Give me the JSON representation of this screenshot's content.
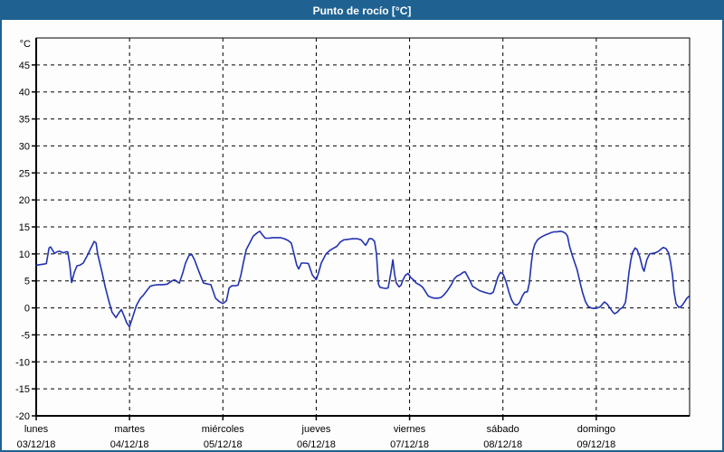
{
  "window": {
    "title": "Punto de rocío [°C]"
  },
  "colors": {
    "titlebar_bg": "#1f6292",
    "titlebar_text": "#ffffff",
    "window_border": "#1f6292",
    "plot_background": "#fdfdfd",
    "axis_color": "#000000",
    "grid_color": "#000000",
    "line_color": "#2233b0",
    "label_color": "#000000"
  },
  "chart_data": {
    "type": "line",
    "title": "Punto de rocío [°C]",
    "legend_position": "none",
    "grid": "dashed-both-axes",
    "y_axis": {
      "unit_label": "°C",
      "ylim": [
        -20,
        50
      ],
      "tick_step": 5,
      "ticks": [
        45,
        40,
        35,
        30,
        25,
        20,
        15,
        10,
        5,
        0,
        -5,
        -10,
        -15,
        -20
      ]
    },
    "x_axis": {
      "range_hours": [
        0,
        168
      ],
      "day_tick_every_hours": 24,
      "days": [
        {
          "name": "lunes",
          "date": "03/12/18"
        },
        {
          "name": "martes",
          "date": "04/12/18"
        },
        {
          "name": "miércoles",
          "date": "05/12/18"
        },
        {
          "name": "jueves",
          "date": "06/12/18"
        },
        {
          "name": "viernes",
          "date": "07/12/18"
        },
        {
          "name": "sábado",
          "date": "08/12/18"
        },
        {
          "name": "domingo",
          "date": "09/12/18"
        }
      ]
    },
    "series": [
      {
        "name": "Punto de rocío",
        "color": "#2233b0",
        "x_unit": "hours since 03/12/18 00:00",
        "points": [
          [
            0,
            7.9
          ],
          [
            0.9,
            8
          ],
          [
            1.9,
            8.1
          ],
          [
            2.6,
            8.2
          ],
          [
            3.3,
            11.1
          ],
          [
            3.7,
            11.3
          ],
          [
            4.7,
            10.1
          ],
          [
            5.4,
            10.4
          ],
          [
            6,
            10.5
          ],
          [
            7,
            10.2
          ],
          [
            7.7,
            10.4
          ],
          [
            8.1,
            10.4
          ],
          [
            8.6,
            8.2
          ],
          [
            9.1,
            4.7
          ],
          [
            9.8,
            6.6
          ],
          [
            10.5,
            7.8
          ],
          [
            11.2,
            7.9
          ],
          [
            12.1,
            8.3
          ],
          [
            13,
            9.5
          ],
          [
            14,
            11
          ],
          [
            14.9,
            12.3
          ],
          [
            15.4,
            12
          ],
          [
            15.8,
            10
          ],
          [
            16.8,
            7
          ],
          [
            17.7,
            4
          ],
          [
            18.6,
            1.5
          ],
          [
            19.5,
            -0.8
          ],
          [
            20.5,
            -1.8
          ],
          [
            21.2,
            -1
          ],
          [
            21.9,
            -0.3
          ],
          [
            22.6,
            -1.5
          ],
          [
            23.3,
            -2.8
          ],
          [
            24,
            -3.5
          ],
          [
            24.9,
            -1.5
          ],
          [
            25.8,
            0.5
          ],
          [
            26.8,
            1.8
          ],
          [
            27.5,
            2.3
          ],
          [
            28.4,
            3.2
          ],
          [
            29.3,
            4
          ],
          [
            30.2,
            4.2
          ],
          [
            31.4,
            4.3
          ],
          [
            32.6,
            4.3
          ],
          [
            33.7,
            4.4
          ],
          [
            34.9,
            5
          ],
          [
            35.6,
            5.2
          ],
          [
            36.3,
            4.8
          ],
          [
            36.8,
            4.6
          ],
          [
            37.7,
            6.5
          ],
          [
            38.4,
            8.3
          ],
          [
            39.3,
            9.7
          ],
          [
            40,
            9.9
          ],
          [
            40.7,
            8.9
          ],
          [
            41.9,
            6.6
          ],
          [
            43,
            4.6
          ],
          [
            44.2,
            4.4
          ],
          [
            44.9,
            4.3
          ],
          [
            46.1,
            1.8
          ],
          [
            47,
            1.2
          ],
          [
            48,
            0.8
          ],
          [
            48.9,
            1.3
          ],
          [
            49.6,
            3.7
          ],
          [
            50.3,
            4.1
          ],
          [
            51.2,
            4.1
          ],
          [
            51.9,
            4.2
          ],
          [
            52.6,
            6
          ],
          [
            53.3,
            8.5
          ],
          [
            54,
            10.8
          ],
          [
            54.9,
            12
          ],
          [
            55.8,
            13.3
          ],
          [
            56.8,
            13.9
          ],
          [
            57.5,
            14.2
          ],
          [
            58.2,
            13.5
          ],
          [
            58.9,
            12.9
          ],
          [
            59.8,
            12.9
          ],
          [
            60.7,
            13
          ],
          [
            61.7,
            13
          ],
          [
            62.8,
            13
          ],
          [
            63.8,
            12.8
          ],
          [
            64.7,
            12.5
          ],
          [
            65.6,
            12
          ],
          [
            66.3,
            10
          ],
          [
            67,
            7.9
          ],
          [
            67.5,
            7.2
          ],
          [
            68.2,
            8.3
          ],
          [
            69.1,
            8.3
          ],
          [
            70,
            8.2
          ],
          [
            71,
            6.1
          ],
          [
            72,
            5.2
          ],
          [
            72.6,
            6.5
          ],
          [
            73.3,
            8.3
          ],
          [
            74.5,
            10
          ],
          [
            75.4,
            10.6
          ],
          [
            76.3,
            11
          ],
          [
            77.3,
            11.4
          ],
          [
            78.2,
            12.2
          ],
          [
            79.1,
            12.6
          ],
          [
            80.3,
            12.7
          ],
          [
            81.4,
            12.8
          ],
          [
            82.6,
            12.8
          ],
          [
            83.5,
            12.6
          ],
          [
            84.2,
            12
          ],
          [
            84.7,
            11.6
          ],
          [
            85.2,
            12.2
          ],
          [
            85.6,
            12.8
          ],
          [
            86.3,
            12.8
          ],
          [
            87,
            12.3
          ],
          [
            87.5,
            10
          ],
          [
            88,
            4.4
          ],
          [
            88.4,
            3.8
          ],
          [
            89.1,
            3.7
          ],
          [
            89.8,
            3.6
          ],
          [
            90.5,
            3.7
          ],
          [
            91.2,
            6.5
          ],
          [
            91.7,
            8.9
          ],
          [
            92.2,
            6
          ],
          [
            92.6,
            4.6
          ],
          [
            93.3,
            3.9
          ],
          [
            93.8,
            4.2
          ],
          [
            94.3,
            5.2
          ],
          [
            94.9,
            6
          ],
          [
            95.6,
            6.4
          ],
          [
            96.3,
            5.6
          ],
          [
            97,
            5.2
          ],
          [
            97.7,
            4.6
          ],
          [
            98.7,
            4.2
          ],
          [
            99.4,
            3.8
          ],
          [
            100.1,
            3
          ],
          [
            100.8,
            2.2
          ],
          [
            101.7,
            1.9
          ],
          [
            102.4,
            1.8
          ],
          [
            103.3,
            1.8
          ],
          [
            104,
            1.9
          ],
          [
            104.7,
            2.3
          ],
          [
            105.4,
            2.9
          ],
          [
            106.1,
            3.6
          ],
          [
            106.8,
            4.4
          ],
          [
            107.5,
            5.4
          ],
          [
            108.2,
            5.9
          ],
          [
            108.9,
            6.1
          ],
          [
            109.8,
            6.6
          ],
          [
            110.3,
            6.7
          ],
          [
            111.2,
            5.5
          ],
          [
            112.2,
            4
          ],
          [
            113.1,
            3.6
          ],
          [
            114,
            3.2
          ],
          [
            115.2,
            2.9
          ],
          [
            116.1,
            2.7
          ],
          [
            116.8,
            2.6
          ],
          [
            117.5,
            2.9
          ],
          [
            118.2,
            4.5
          ],
          [
            118.7,
            5.7
          ],
          [
            119.4,
            6.6
          ],
          [
            120.1,
            6.2
          ],
          [
            120.8,
            4.8
          ],
          [
            121.5,
            3
          ],
          [
            122.2,
            1.5
          ],
          [
            122.9,
            0.7
          ],
          [
            123.6,
            0.5
          ],
          [
            124.3,
            1
          ],
          [
            125,
            2.2
          ],
          [
            125.6,
            2.9
          ],
          [
            126.3,
            3
          ],
          [
            126.8,
            4.6
          ],
          [
            127.3,
            8.3
          ],
          [
            127.7,
            10.5
          ],
          [
            128.2,
            11.8
          ],
          [
            128.9,
            12.6
          ],
          [
            129.6,
            13
          ],
          [
            130.3,
            13.3
          ],
          [
            131.2,
            13.6
          ],
          [
            131.9,
            13.8
          ],
          [
            132.6,
            14
          ],
          [
            133.3,
            14.1
          ],
          [
            134,
            14.1
          ],
          [
            134.7,
            14.2
          ],
          [
            135.4,
            14.1
          ],
          [
            136.1,
            13.8
          ],
          [
            136.6,
            13.3
          ],
          [
            137.1,
            11.5
          ],
          [
            137.8,
            9.8
          ],
          [
            138.4,
            8.5
          ],
          [
            139.1,
            7
          ],
          [
            139.8,
            4.8
          ],
          [
            140.5,
            2.8
          ],
          [
            141.2,
            1.2
          ],
          [
            141.9,
            0.3
          ],
          [
            142.6,
            0
          ],
          [
            143.3,
            -0.1
          ],
          [
            144.3,
            0
          ],
          [
            145,
            0.2
          ],
          [
            145.7,
            0.8
          ],
          [
            146.1,
            1.1
          ],
          [
            146.8,
            0.7
          ],
          [
            147.5,
            0
          ],
          [
            148.2,
            -0.7
          ],
          [
            148.7,
            -1.1
          ],
          [
            149.4,
            -0.8
          ],
          [
            150.1,
            -0.2
          ],
          [
            150.8,
            0.1
          ],
          [
            151.5,
            1
          ],
          [
            151.9,
            3.2
          ],
          [
            152.4,
            6.6
          ],
          [
            152.9,
            8.9
          ],
          [
            153.3,
            10.2
          ],
          [
            154,
            11.1
          ],
          [
            154.5,
            10.8
          ],
          [
            155.2,
            9.4
          ],
          [
            155.9,
            7.4
          ],
          [
            156.3,
            6.8
          ],
          [
            157,
            8.9
          ],
          [
            157.7,
            10
          ],
          [
            158.4,
            10.1
          ],
          [
            159.1,
            10.2
          ],
          [
            159.8,
            10.4
          ],
          [
            160.5,
            10.8
          ],
          [
            161.2,
            11.2
          ],
          [
            161.9,
            11
          ],
          [
            162.6,
            10.2
          ],
          [
            163.1,
            8.5
          ],
          [
            163.6,
            6
          ],
          [
            164,
            3
          ],
          [
            164.5,
            0.8
          ],
          [
            165.2,
            0.1
          ],
          [
            165.9,
            0.3
          ],
          [
            166.6,
            1
          ],
          [
            167.3,
            1.8
          ],
          [
            167.8,
            2.1
          ]
        ]
      }
    ]
  }
}
